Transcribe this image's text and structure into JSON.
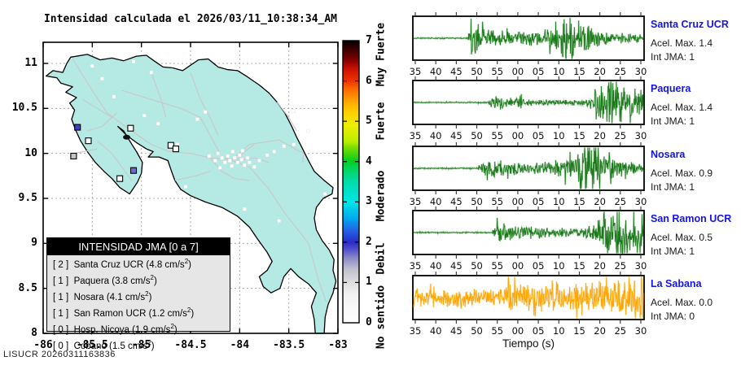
{
  "title": "Intensidad calculada el 2026/03/11_10:38:34_AM",
  "footer": "LISUCR 20260311163836",
  "map": {
    "x_tick_labels": [
      "-86",
      "-85.5",
      "-85",
      "-84.5",
      "-84",
      "-83.5",
      "-83"
    ],
    "y_tick_labels": [
      "8",
      "8.5",
      "9",
      "9.5",
      "10",
      "10.5",
      "11"
    ],
    "lon_range": [
      -86,
      -83
    ],
    "lat_range": [
      8,
      11
    ],
    "land_color": "#b4e9e4",
    "sea_color": "#ffffff",
    "road_color": "#c8c8c8",
    "legend": {
      "header": "INTENSIDAD JMA [0 a 7]",
      "unit": "cm/s",
      "entries": [
        {
          "jma": "2",
          "name": "Santa Cruz UCR",
          "accel": "4.8"
        },
        {
          "jma": "1",
          "name": "Paquera",
          "accel": "3.8"
        },
        {
          "jma": "1",
          "name": "Nosara",
          "accel": "4.1"
        },
        {
          "jma": "1",
          "name": "San Ramon UCR",
          "accel": "1.2"
        },
        {
          "jma": "0",
          "name": "Hosp. Nicoya",
          "accel": "1.9"
        },
        {
          "jma": "0",
          "name": "Cobano",
          "accel": "1.5"
        }
      ]
    },
    "markers": [
      {
        "name": "Santa Cruz UCR",
        "lon": -85.65,
        "lat": 10.29,
        "color": "#4040c8"
      },
      {
        "name": "Hosp. Nicoya",
        "lon": -85.54,
        "lat": 10.14,
        "color": "#ffffff"
      },
      {
        "name": "Nosara",
        "lon": -85.69,
        "lat": 9.97,
        "color": "#c4c4c4"
      },
      {
        "name": "Paquera",
        "lon": -85.08,
        "lat": 9.81,
        "color": "#6b6bd4"
      },
      {
        "name": "Cobano",
        "lon": -85.22,
        "lat": 9.72,
        "color": "#ffffff"
      },
      {
        "name": "San Ramon UCR",
        "lon": -84.7,
        "lat": 10.09,
        "color": "#ffffff"
      },
      {
        "name": "station",
        "lon": -84.65,
        "lat": 10.05,
        "color": "#ffffff"
      },
      {
        "name": "station",
        "lon": -85.11,
        "lat": 10.28,
        "color": "#ffffff"
      }
    ],
    "station_dots": [
      [
        -84.31,
        9.97
      ],
      [
        -84.25,
        9.92
      ],
      [
        -84.22,
        10.0
      ],
      [
        -84.18,
        9.95
      ],
      [
        -84.15,
        9.9
      ],
      [
        -84.12,
        9.97
      ],
      [
        -84.1,
        9.92
      ],
      [
        -84.08,
        9.86
      ],
      [
        -84.05,
        9.95
      ],
      [
        -84.02,
        9.9
      ],
      [
        -84.0,
        9.98
      ],
      [
        -83.98,
        9.93
      ],
      [
        -83.95,
        9.87
      ],
      [
        -83.92,
        9.95
      ],
      [
        -83.9,
        9.9
      ],
      [
        -84.07,
        10.02
      ],
      [
        -83.97,
        10.03
      ],
      [
        -84.2,
        9.84
      ],
      [
        -83.85,
        9.85
      ],
      [
        -83.8,
        9.92
      ],
      [
        -83.72,
        9.98
      ],
      [
        -83.65,
        10.02
      ],
      [
        -83.55,
        10.08
      ],
      [
        -83.45,
        10.1
      ],
      [
        -85.5,
        10.97
      ],
      [
        -85.4,
        10.83
      ],
      [
        -85.28,
        10.63
      ],
      [
        -84.97,
        10.42
      ],
      [
        -84.83,
        10.33
      ],
      [
        -84.43,
        10.38
      ],
      [
        -84.35,
        10.46
      ],
      [
        -83.45,
        10.47
      ],
      [
        -83.13,
        9.55
      ],
      [
        -83.6,
        9.25
      ],
      [
        -83.95,
        9.38
      ],
      [
        -84.55,
        9.63
      ],
      [
        -85.08,
        11.02
      ],
      [
        -84.63,
        10.1
      ],
      [
        -83.3,
        10.25
      ],
      [
        -84.9,
        10.9
      ]
    ]
  },
  "colorbar": {
    "numbers": [
      "0",
      "1",
      "2",
      "3",
      "4",
      "5",
      "6",
      "7"
    ],
    "categories": [
      {
        "text": "Muy Fuerte",
        "center_value": 6.65
      },
      {
        "text": "Fuerte",
        "center_value": 5.0
      },
      {
        "text": "Moderado",
        "center_value": 3.15
      },
      {
        "text": "Debil",
        "center_value": 1.6
      },
      {
        "text": "No sentido",
        "center_value": 0.15
      }
    ],
    "stops": [
      {
        "o": 0.0,
        "c": "#ffffff"
      },
      {
        "o": 0.1,
        "c": "#f2f2f2"
      },
      {
        "o": 0.143,
        "c": "#dedede"
      },
      {
        "o": 0.19,
        "c": "#c0c0cc"
      },
      {
        "o": 0.23,
        "c": "#8888c8"
      },
      {
        "o": 0.265,
        "c": "#4848cc"
      },
      {
        "o": 0.286,
        "c": "#2a2ac8"
      },
      {
        "o": 0.33,
        "c": "#2266e6"
      },
      {
        "o": 0.37,
        "c": "#00aaee"
      },
      {
        "o": 0.429,
        "c": "#00e6e6"
      },
      {
        "o": 0.5,
        "c": "#00dcaa"
      },
      {
        "o": 0.55,
        "c": "#00d455"
      },
      {
        "o": 0.571,
        "c": "#00cc22"
      },
      {
        "o": 0.62,
        "c": "#77dd00"
      },
      {
        "o": 0.643,
        "c": "#bbee00"
      },
      {
        "o": 0.7,
        "c": "#eeee00"
      },
      {
        "o": 0.75,
        "c": "#ffcc00"
      },
      {
        "o": 0.786,
        "c": "#ffa500"
      },
      {
        "o": 0.83,
        "c": "#ff6600"
      },
      {
        "o": 0.857,
        "c": "#ee3300"
      },
      {
        "o": 0.9,
        "c": "#cc1100"
      },
      {
        "o": 0.929,
        "c": "#880000"
      },
      {
        "o": 0.97,
        "c": "#3a0000"
      },
      {
        "o": 1.0,
        "c": "#000000"
      }
    ]
  },
  "chart_data": {
    "type": "line",
    "xlabel": "Tiempo (s)",
    "x_tick_labels": [
      "35",
      "40",
      "45",
      "50",
      "55",
      "00",
      "05",
      "10",
      "15",
      "20",
      "25",
      "30"
    ],
    "x_range_seconds": [
      34,
      95
    ],
    "accel_prefix": "Acel. Max.",
    "int_prefix": "Int JMA:",
    "panels": [
      {
        "station": "Santa Cruz UCR",
        "accel_max": "1.4",
        "int_jma": "1",
        "color": "#1a7a1a",
        "envelope": [
          [
            34,
            0.02
          ],
          [
            48.3,
            0.02
          ],
          [
            48.8,
            0.3
          ],
          [
            49.3,
            0.85
          ],
          [
            50.5,
            0.55
          ],
          [
            52,
            0.38
          ],
          [
            55,
            0.3
          ],
          [
            58,
            0.26
          ],
          [
            62,
            0.22
          ],
          [
            66,
            0.25
          ],
          [
            70,
            0.3
          ],
          [
            72.5,
            0.35
          ],
          [
            73.5,
            0.75
          ],
          [
            74.5,
            1.0
          ],
          [
            76,
            0.95
          ],
          [
            77.5,
            0.7
          ],
          [
            79,
            0.6
          ],
          [
            80,
            0.45
          ],
          [
            82,
            0.3
          ],
          [
            85,
            0.22
          ],
          [
            88,
            0.18
          ],
          [
            91,
            0.15
          ],
          [
            95,
            0.13
          ]
        ]
      },
      {
        "station": "Paquera",
        "accel_max": "1.4",
        "int_jma": "1",
        "color": "#1a7a1a",
        "envelope": [
          [
            34,
            0.015
          ],
          [
            53.5,
            0.02
          ],
          [
            54.5,
            0.18
          ],
          [
            55.5,
            0.28
          ],
          [
            57,
            0.22
          ],
          [
            59,
            0.16
          ],
          [
            61,
            0.18
          ],
          [
            62.5,
            0.22
          ],
          [
            64,
            0.15
          ],
          [
            68,
            0.12
          ],
          [
            72,
            0.1
          ],
          [
            76,
            0.1
          ],
          [
            79,
            0.12
          ],
          [
            81,
            0.2
          ],
          [
            82,
            0.55
          ],
          [
            83,
            0.85
          ],
          [
            84.5,
            1.0
          ],
          [
            86,
            0.85
          ],
          [
            87.5,
            0.95
          ],
          [
            89,
            0.75
          ],
          [
            90.5,
            0.6
          ],
          [
            92,
            0.55
          ],
          [
            93.5,
            0.45
          ],
          [
            95,
            0.4
          ]
        ]
      },
      {
        "station": "Nosara",
        "accel_max": "0.9",
        "int_jma": "1",
        "color": "#1a7a1a",
        "envelope": [
          [
            34,
            0.02
          ],
          [
            51,
            0.02
          ],
          [
            51.8,
            0.25
          ],
          [
            53,
            0.3
          ],
          [
            54.5,
            0.35
          ],
          [
            56,
            0.28
          ],
          [
            58,
            0.22
          ],
          [
            60,
            0.25
          ],
          [
            62,
            0.2
          ],
          [
            64,
            0.18
          ],
          [
            66,
            0.2
          ],
          [
            68,
            0.22
          ],
          [
            70,
            0.2
          ],
          [
            71.5,
            0.25
          ],
          [
            73,
            0.3
          ],
          [
            74.5,
            0.35
          ],
          [
            76,
            0.45
          ],
          [
            77.5,
            0.6
          ],
          [
            79,
            0.85
          ],
          [
            80,
            1.0
          ],
          [
            81,
            0.9
          ],
          [
            82.5,
            0.75
          ],
          [
            84,
            0.55
          ],
          [
            85.5,
            0.45
          ],
          [
            87,
            0.35
          ],
          [
            89,
            0.25
          ],
          [
            91,
            0.2
          ],
          [
            95,
            0.15
          ]
        ]
      },
      {
        "station": "San Ramon UCR",
        "accel_max": "0.5",
        "int_jma": "1",
        "color": "#1a7a1a",
        "envelope": [
          [
            34,
            0.02
          ],
          [
            54.8,
            0.02
          ],
          [
            55.3,
            0.2
          ],
          [
            56,
            0.45
          ],
          [
            56.8,
            0.5
          ],
          [
            57.5,
            0.35
          ],
          [
            58.5,
            0.28
          ],
          [
            60,
            0.25
          ],
          [
            62,
            0.22
          ],
          [
            64,
            0.2
          ],
          [
            66,
            0.22
          ],
          [
            68,
            0.18
          ],
          [
            70,
            0.18
          ],
          [
            72,
            0.16
          ],
          [
            74,
            0.18
          ],
          [
            76,
            0.15
          ],
          [
            78,
            0.15
          ],
          [
            80,
            0.18
          ],
          [
            81.5,
            0.25
          ],
          [
            83,
            0.45
          ],
          [
            84.5,
            0.7
          ],
          [
            86,
            0.9
          ],
          [
            87.5,
            1.0
          ],
          [
            89,
            0.8
          ],
          [
            90.5,
            0.95
          ],
          [
            92,
            0.75
          ],
          [
            93.5,
            0.85
          ],
          [
            95,
            0.7
          ]
        ]
      },
      {
        "station": "La Sabana",
        "accel_max": "0.0",
        "int_jma": "0",
        "color": "#ffa500",
        "envelope": [
          [
            34,
            0.3
          ],
          [
            40,
            0.32
          ],
          [
            45,
            0.28
          ],
          [
            50,
            0.3
          ],
          [
            55,
            0.28
          ],
          [
            58.5,
            0.3
          ],
          [
            59,
            0.75
          ],
          [
            60,
            0.5
          ],
          [
            61,
            0.55
          ],
          [
            62,
            0.45
          ],
          [
            64,
            0.5
          ],
          [
            66,
            0.45
          ],
          [
            68,
            0.5
          ],
          [
            70,
            0.48
          ],
          [
            72,
            0.52
          ],
          [
            74,
            0.45
          ],
          [
            76,
            0.55
          ],
          [
            78,
            0.5
          ],
          [
            80,
            0.55
          ],
          [
            82,
            0.5
          ],
          [
            84,
            0.58
          ],
          [
            86,
            0.55
          ],
          [
            88,
            0.6
          ],
          [
            90,
            0.65
          ],
          [
            91.5,
            0.75
          ],
          [
            92.5,
            1.0
          ],
          [
            93.5,
            0.85
          ],
          [
            94.5,
            0.95
          ],
          [
            95,
            0.6
          ]
        ]
      }
    ]
  }
}
